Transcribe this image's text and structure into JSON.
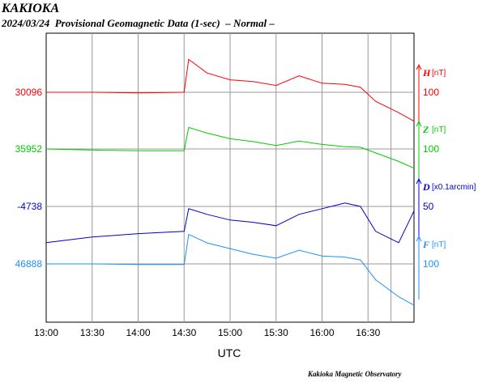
{
  "header": {
    "title": "KAKIOKA",
    "subtitle": "2024/03/24  Provisional Geomagnetic Data (1-sec)  – Normal –"
  },
  "footer": {
    "credit": "Kakioka Magnetic Observatory"
  },
  "chart_data": {
    "type": "line",
    "xlabel": "UTC",
    "x_ticks": [
      "13:00",
      "13:30",
      "14:00",
      "14:30",
      "15:00",
      "15:30",
      "16:00",
      "16:30"
    ],
    "x_range": [
      "13:00",
      "17:00"
    ],
    "grid": true,
    "series": [
      {
        "name": "H",
        "unit": "[nT]",
        "color": "#ff0000",
        "base_label": "30096",
        "scale_label": "100",
        "values_hhmm": [
          [
            "13:00",
            30096
          ],
          [
            "13:30",
            30096
          ],
          [
            "14:00",
            30095
          ],
          [
            "14:30",
            30096
          ],
          [
            "14:33",
            30154
          ],
          [
            "14:45",
            30130
          ],
          [
            "15:00",
            30118
          ],
          [
            "15:15",
            30115
          ],
          [
            "15:30",
            30108
          ],
          [
            "15:45",
            30125
          ],
          [
            "16:00",
            30112
          ],
          [
            "16:15",
            30110
          ],
          [
            "16:25",
            30105
          ],
          [
            "16:35",
            30080
          ],
          [
            "16:50",
            30060
          ],
          [
            "17:00",
            30045
          ]
        ]
      },
      {
        "name": "Z",
        "unit": "[nT]",
        "color": "#00cc00",
        "base_label": "35952",
        "scale_label": "100",
        "values_hhmm": [
          [
            "13:00",
            35952
          ],
          [
            "13:30",
            35950
          ],
          [
            "14:00",
            35949
          ],
          [
            "14:30",
            35949
          ],
          [
            "14:33",
            35990
          ],
          [
            "14:45",
            35980
          ],
          [
            "15:00",
            35970
          ],
          [
            "15:15",
            35965
          ],
          [
            "15:30",
            35958
          ],
          [
            "15:45",
            35966
          ],
          [
            "16:00",
            35960
          ],
          [
            "16:15",
            35956
          ],
          [
            "16:25",
            35955
          ],
          [
            "16:35",
            35945
          ],
          [
            "16:50",
            35930
          ],
          [
            "17:00",
            35918
          ]
        ]
      },
      {
        "name": "D",
        "unit": "[x0.1arcmin]",
        "color": "#0000cc",
        "base_label": "-4738",
        "scale_label": "50",
        "values_hhmm": [
          [
            "13:00",
            -4770
          ],
          [
            "13:30",
            -4765
          ],
          [
            "14:00",
            -4762
          ],
          [
            "14:30",
            -4760
          ],
          [
            "14:33",
            -4740
          ],
          [
            "14:45",
            -4745
          ],
          [
            "15:00",
            -4750
          ],
          [
            "15:15",
            -4752
          ],
          [
            "15:30",
            -4755
          ],
          [
            "15:45",
            -4745
          ],
          [
            "16:00",
            -4740
          ],
          [
            "16:15",
            -4735
          ],
          [
            "16:25",
            -4738
          ],
          [
            "16:35",
            -4760
          ],
          [
            "16:50",
            -4770
          ],
          [
            "17:00",
            -4742
          ]
        ]
      },
      {
        "name": "F",
        "unit": "[nT]",
        "color": "#1e90ff",
        "base_label": "46888",
        "scale_label": "100",
        "values_hhmm": [
          [
            "13:00",
            46888
          ],
          [
            "13:30",
            46888
          ],
          [
            "14:00",
            46887
          ],
          [
            "14:30",
            46887
          ],
          [
            "14:33",
            46940
          ],
          [
            "14:45",
            46925
          ],
          [
            "15:00",
            46915
          ],
          [
            "15:15",
            46905
          ],
          [
            "15:30",
            46898
          ],
          [
            "15:45",
            46912
          ],
          [
            "16:00",
            46902
          ],
          [
            "16:15",
            46900
          ],
          [
            "16:25",
            46895
          ],
          [
            "16:35",
            46860
          ],
          [
            "16:50",
            46830
          ],
          [
            "17:00",
            46815
          ]
        ]
      }
    ]
  }
}
